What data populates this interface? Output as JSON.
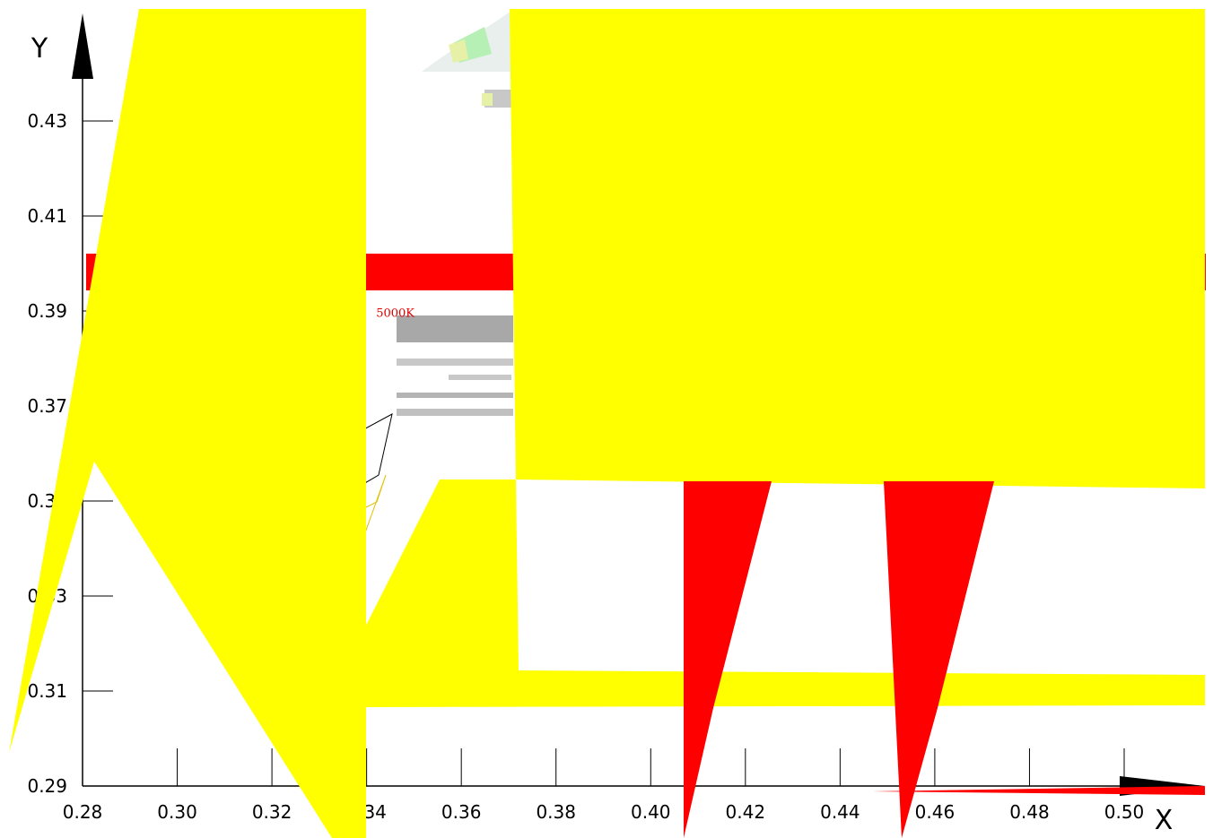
{
  "chart_data": {
    "type": "scatter",
    "xlabel": "X",
    "ylabel": "Y",
    "xlim": [
      0.28,
      0.515
    ],
    "ylim": [
      0.29,
      0.445
    ],
    "x_ticks": [
      "0.28",
      "0.30",
      "0.32",
      "0.34",
      "0.36",
      "0.38",
      "0.40",
      "0.42",
      "0.44",
      "0.46",
      "0.48",
      "0.50"
    ],
    "y_ticks": [
      "0.29",
      "0.31",
      "0.33",
      "0.35",
      "0.37",
      "0.39",
      "0.41",
      "0.43"
    ],
    "annotations": [
      {
        "text": "5000K",
        "x": 0.342,
        "y": 0.3888,
        "color": "#e00000"
      }
    ],
    "grid": false,
    "legend": "none"
  },
  "colors": {
    "axis": "#000000",
    "overlay_yellow": "#ffff00",
    "overlay_red": "#ff0000",
    "band_gray": "#a8a8a8",
    "accent_green": "#b6f0b4"
  }
}
